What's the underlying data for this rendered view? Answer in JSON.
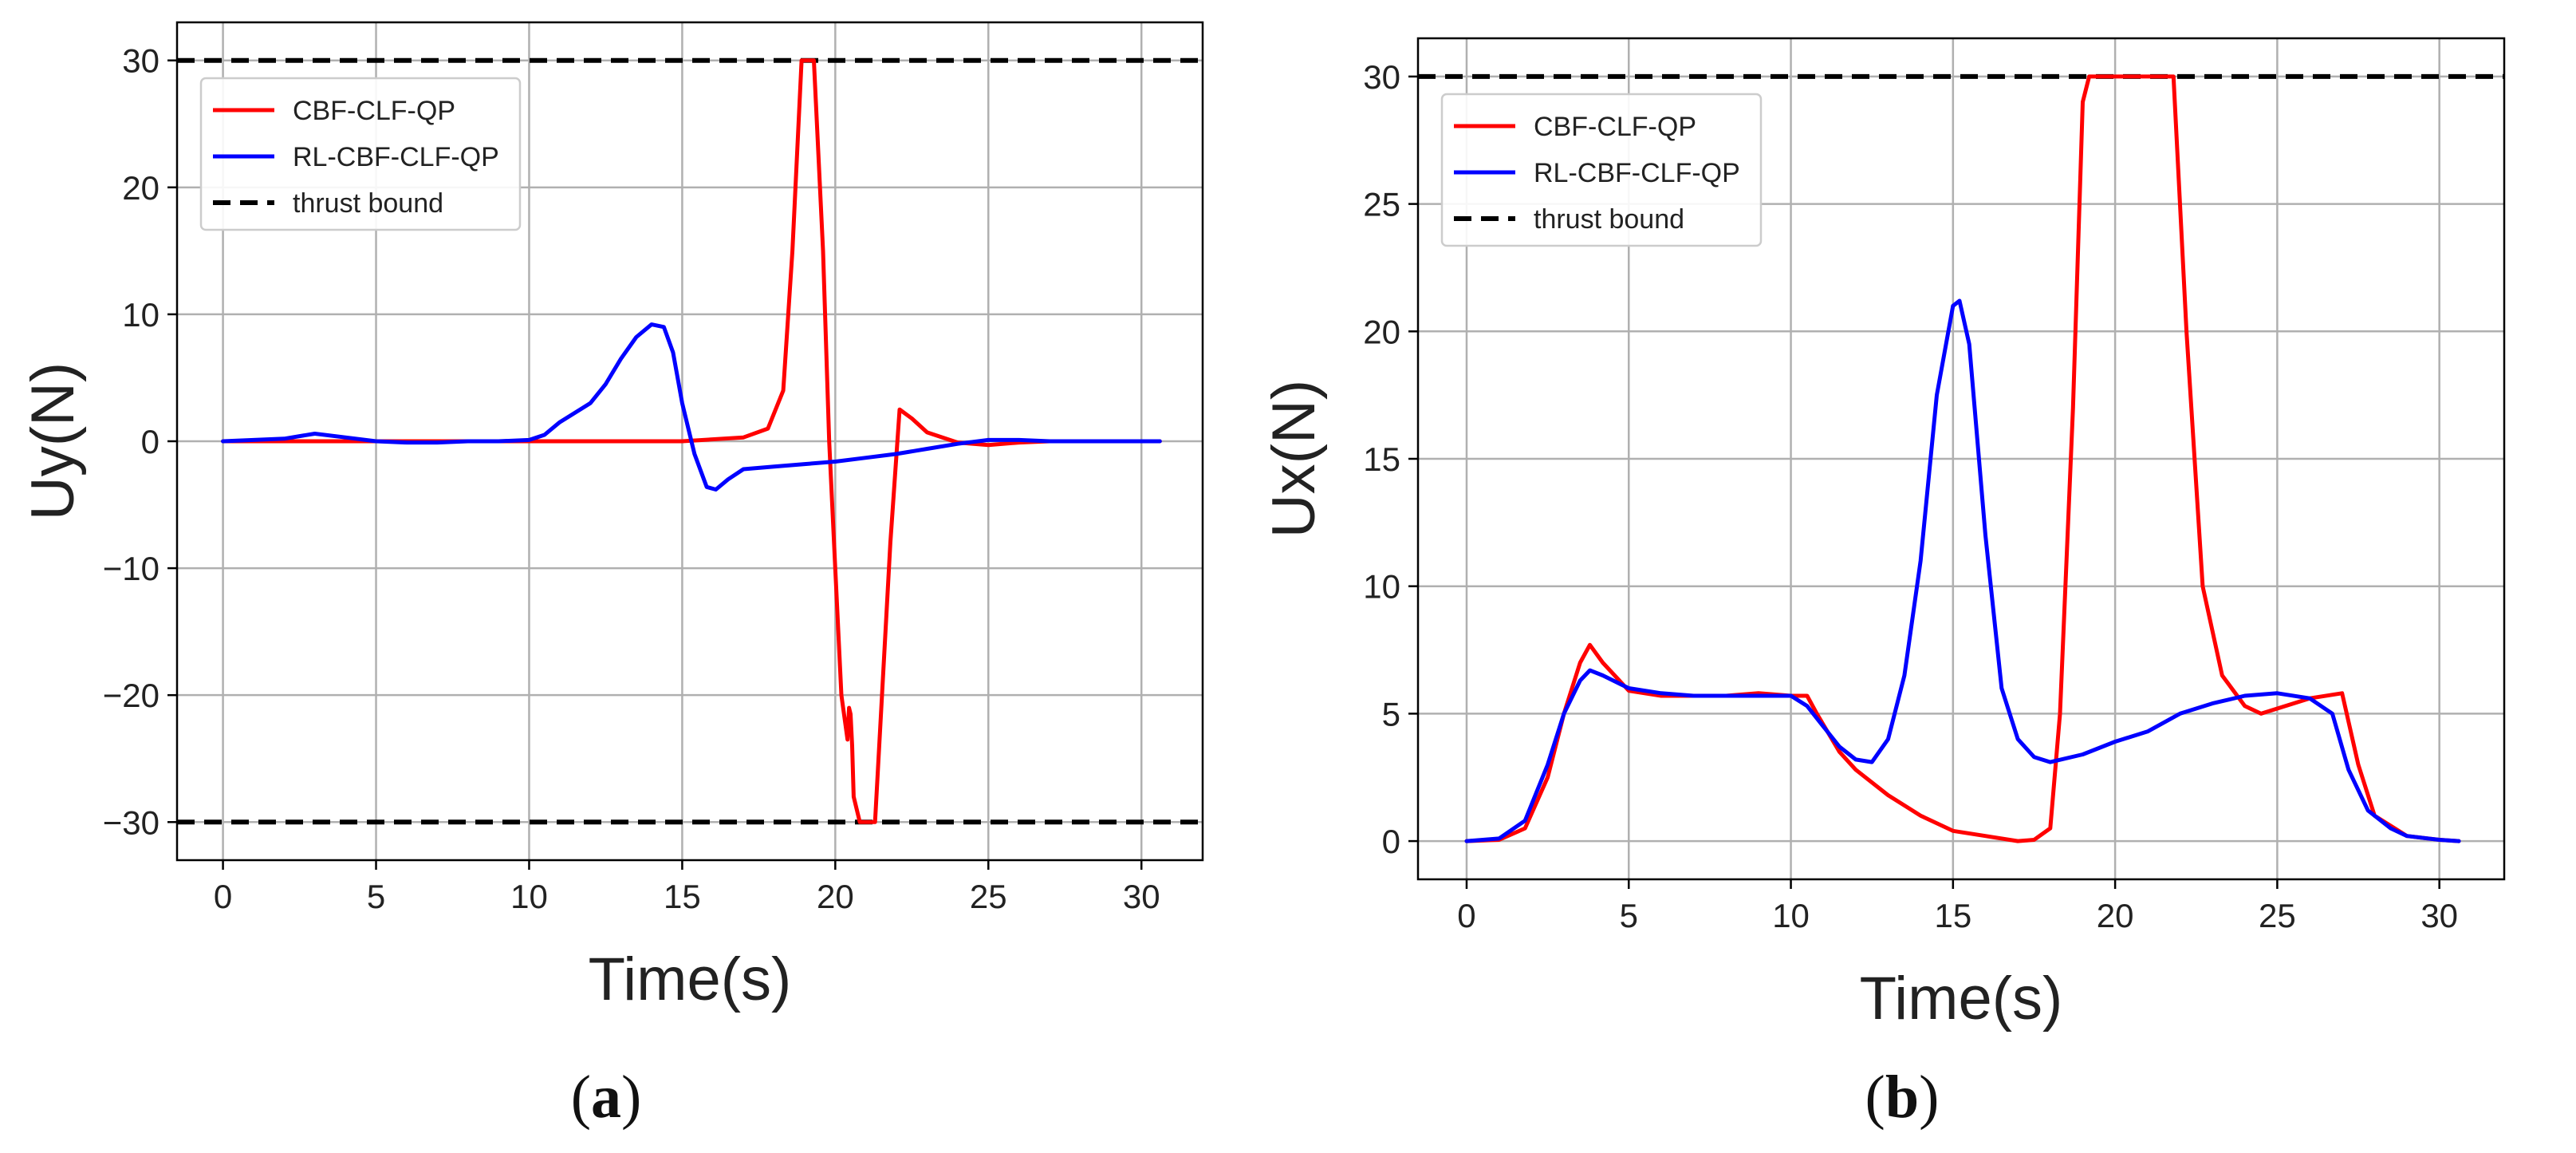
{
  "chart_data": [
    {
      "type": "line",
      "panel_label": "a",
      "title": "",
      "xlabel": "Time(s)",
      "ylabel": "Uy(N)",
      "xlim": [
        -1.5,
        32
      ],
      "ylim": [
        -33,
        33
      ],
      "xticks": [
        0,
        5,
        10,
        15,
        20,
        25,
        30
      ],
      "yticks": [
        -30,
        -20,
        -10,
        0,
        10,
        20,
        30
      ],
      "ytick_labels": [
        "−30",
        "−20",
        "−10",
        "0",
        "10",
        "20",
        "30"
      ],
      "grid": true,
      "legend_position": "top-left",
      "bounds": [
        30,
        -30
      ],
      "bound_name": "thrust bound",
      "series": [
        {
          "name": "CBF-CLF-QP",
          "color": "#ff0000",
          "x": [
            0,
            5,
            10,
            15,
            17,
            17.8,
            18.3,
            18.6,
            18.9,
            19.3,
            19.6,
            19.8,
            20.0,
            20.2,
            20.4,
            20.45,
            20.5,
            20.55,
            20.6,
            20.8,
            21.0,
            21.3,
            21.8,
            22.1,
            22.5,
            23,
            24,
            25,
            26,
            27,
            28,
            30.6
          ],
          "y": [
            0,
            0,
            0,
            0,
            0.3,
            1.0,
            4.0,
            15.0,
            30.0,
            30.0,
            15.0,
            0.0,
            -10.0,
            -20.0,
            -23.5,
            -21.0,
            -21.5,
            -24.0,
            -28.0,
            -30.0,
            -30.0,
            -30.0,
            -8.0,
            2.5,
            1.8,
            0.7,
            -0.1,
            -0.3,
            -0.1,
            0.0,
            0.0,
            0.0
          ]
        },
        {
          "name": "RL-CBF-CLF-QP",
          "color": "#0000ff",
          "x": [
            0,
            1,
            2,
            3,
            4,
            5,
            6,
            7,
            8,
            9,
            10,
            10.5,
            11,
            12,
            12.5,
            13,
            13.5,
            14,
            14.4,
            14.7,
            15,
            15.4,
            15.8,
            16.1,
            16.5,
            17,
            18,
            19,
            20,
            21,
            22,
            23,
            24,
            25,
            26,
            27,
            28,
            29,
            30.6
          ],
          "y": [
            0,
            0.1,
            0.2,
            0.6,
            0.3,
            0,
            -0.1,
            -0.1,
            0,
            0,
            0.1,
            0.5,
            1.5,
            3.0,
            4.5,
            6.5,
            8.2,
            9.2,
            9.0,
            7.0,
            3.0,
            -1.0,
            -3.6,
            -3.8,
            -3.0,
            -2.2,
            -2.0,
            -1.8,
            -1.6,
            -1.3,
            -1.0,
            -0.6,
            -0.2,
            0.1,
            0.1,
            0.0,
            0.0,
            0.0,
            0.0
          ]
        }
      ]
    },
    {
      "type": "line",
      "panel_label": "b",
      "title": "",
      "xlabel": "Time(s)",
      "ylabel": "Ux(N)",
      "xlim": [
        -1.5,
        32
      ],
      "ylim": [
        -1.5,
        31.5
      ],
      "xticks": [
        0,
        5,
        10,
        15,
        20,
        25,
        30
      ],
      "yticks": [
        0,
        5,
        10,
        15,
        20,
        25,
        30
      ],
      "ytick_labels": [
        "0",
        "5",
        "10",
        "15",
        "20",
        "25",
        "30"
      ],
      "grid": true,
      "legend_position": "top-left",
      "bounds": [
        30
      ],
      "bound_name": "thrust bound",
      "series": [
        {
          "name": "CBF-CLF-QP",
          "color": "#ff0000",
          "x": [
            0,
            1,
            1.8,
            2.5,
            3.0,
            3.5,
            3.8,
            4.2,
            5,
            6,
            7,
            8,
            9,
            10,
            10.5,
            10.8,
            11.5,
            12,
            13,
            14,
            15,
            16,
            17,
            17.5,
            18,
            18.3,
            18.7,
            19.0,
            19.2,
            19.5,
            21.8,
            22.2,
            22.7,
            23.3,
            24,
            24.5,
            25,
            26,
            27,
            27.5,
            28,
            29,
            30,
            30.6
          ],
          "y": [
            0,
            0.05,
            0.5,
            2.5,
            5.0,
            7.0,
            7.7,
            7.0,
            5.9,
            5.7,
            5.7,
            5.7,
            5.8,
            5.7,
            5.7,
            5.0,
            3.5,
            2.8,
            1.8,
            1.0,
            0.4,
            0.2,
            0.0,
            0.05,
            0.5,
            5.0,
            17.0,
            29.0,
            30.0,
            30.0,
            30.0,
            20.0,
            10.0,
            6.5,
            5.3,
            5.0,
            5.2,
            5.6,
            5.8,
            3.0,
            1.0,
            0.2,
            0.05,
            0.0
          ]
        },
        {
          "name": "RL-CBF-CLF-QP",
          "color": "#0000ff",
          "x": [
            0,
            1,
            1.8,
            2.5,
            3.0,
            3.5,
            3.8,
            4.2,
            5,
            6,
            7,
            8,
            9,
            10,
            10.5,
            11,
            11.5,
            12,
            12.5,
            13,
            13.5,
            14,
            14.5,
            15,
            15.2,
            15.5,
            16,
            16.5,
            17,
            17.5,
            18,
            19,
            20,
            21,
            22,
            23,
            24,
            25,
            26,
            26.7,
            27.2,
            27.8,
            28.5,
            29,
            30,
            30.6
          ],
          "y": [
            0,
            0.1,
            0.8,
            3.0,
            5.0,
            6.3,
            6.7,
            6.5,
            6.0,
            5.8,
            5.7,
            5.7,
            5.7,
            5.7,
            5.3,
            4.5,
            3.7,
            3.2,
            3.1,
            4.0,
            6.5,
            11.0,
            17.5,
            21.0,
            21.2,
            19.5,
            12.0,
            6.0,
            4.0,
            3.3,
            3.1,
            3.4,
            3.9,
            4.3,
            5.0,
            5.4,
            5.7,
            5.8,
            5.6,
            5.0,
            2.8,
            1.2,
            0.5,
            0.2,
            0.05,
            0.0
          ]
        }
      ]
    }
  ]
}
